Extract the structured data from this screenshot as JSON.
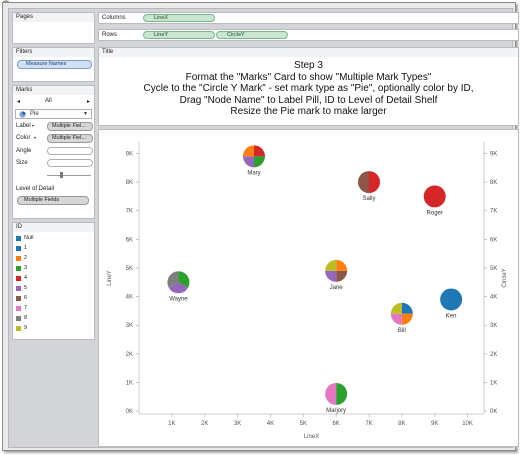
{
  "shelves": {
    "columns_label": "Columns",
    "rows_label": "Rows",
    "columns_pills": [
      "LineX"
    ],
    "rows_pills": [
      "LineY",
      "CircleY"
    ]
  },
  "left": {
    "pages_label": "Pages",
    "filters_label": "Filters",
    "filters_pill": "Measure Names",
    "marks_label": "Marks",
    "marks_all": "All",
    "mark_type": "Pie",
    "label_label": "Label",
    "label_pill": "Multiple Fiel...",
    "color_label": "Color",
    "color_pill": "Multiple Fiel...",
    "angle_label": "Angle",
    "size_label": "Size",
    "lod_label": "Level of Detail",
    "lod_pill": "Multiple Fields",
    "legend_title": "ID",
    "legend_items": [
      {
        "label": "Null",
        "color": "#1f77b4"
      },
      {
        "label": "1",
        "color": "#1f77b4"
      },
      {
        "label": "2",
        "color": "#ff7f0e"
      },
      {
        "label": "3",
        "color": "#2ca02c"
      },
      {
        "label": "4",
        "color": "#d62728"
      },
      {
        "label": "5",
        "color": "#9467bd"
      },
      {
        "label": "6",
        "color": "#8c564b"
      },
      {
        "label": "7",
        "color": "#e377c2"
      },
      {
        "label": "8",
        "color": "#7f7f7f"
      },
      {
        "label": "9",
        "color": "#bcbd22"
      }
    ]
  },
  "title": {
    "header": "Title",
    "lines": [
      "Step 3",
      "Format the \"Marks\" Card to show \"Multiple Mark Types\"",
      "Cycle to the \"Circle Y Mark\"  - set mark type as \"Pie\", optionally color by ID,",
      "Drag \"Node Name\" to Label Pill, ID to Level of Detail Shelf",
      "Resize the Pie mark to make larger"
    ]
  },
  "chart_data": {
    "type": "scatter",
    "xlabel": "LineX",
    "ylabel": "LineY",
    "ylabel_right": "CircleY",
    "xlim": [
      0,
      10500
    ],
    "ylim": [
      -100,
      9400
    ],
    "x_ticks": [
      "1K",
      "2K",
      "3K",
      "4K",
      "5K",
      "6K",
      "7K",
      "8K",
      "9K",
      "10K"
    ],
    "x_tick_values": [
      1000,
      2000,
      3000,
      4000,
      5000,
      6000,
      7000,
      8000,
      9000,
      10000
    ],
    "y_ticks": [
      "0K",
      "1K",
      "2K",
      "3K",
      "4K",
      "5K",
      "6K",
      "7K",
      "8K",
      "9K"
    ],
    "y_tick_values": [
      0,
      1000,
      2000,
      3000,
      4000,
      5000,
      6000,
      7000,
      8000,
      9000
    ],
    "points": [
      {
        "name": "Mary",
        "x": 3500,
        "y": 8900,
        "colors": [
          "#d62728",
          "#2ca02c",
          "#9467bd",
          "#ff7f0e"
        ]
      },
      {
        "name": "Sally",
        "x": 7000,
        "y": 8000,
        "colors": [
          "#d62728",
          "#8c564b"
        ]
      },
      {
        "name": "Roger",
        "x": 9000,
        "y": 7500,
        "colors": [
          "#d62728"
        ]
      },
      {
        "name": "Wayne",
        "x": 1200,
        "y": 4500,
        "colors": [
          "#2ca02c",
          "#9467bd",
          "#7f7f7f"
        ]
      },
      {
        "name": "Jane",
        "x": 6000,
        "y": 4900,
        "colors": [
          "#ff7f0e",
          "#8c564b",
          "#9467bd",
          "#bcbd22"
        ]
      },
      {
        "name": "Ken",
        "x": 9500,
        "y": 3900,
        "colors": [
          "#1f77b4"
        ]
      },
      {
        "name": "Bill",
        "x": 8000,
        "y": 3400,
        "colors": [
          "#1f77b4",
          "#ff7f0e",
          "#e377c2",
          "#bcbd22"
        ]
      },
      {
        "name": "Marjory",
        "x": 6000,
        "y": 600,
        "colors": [
          "#2ca02c",
          "#e377c2"
        ]
      }
    ]
  }
}
